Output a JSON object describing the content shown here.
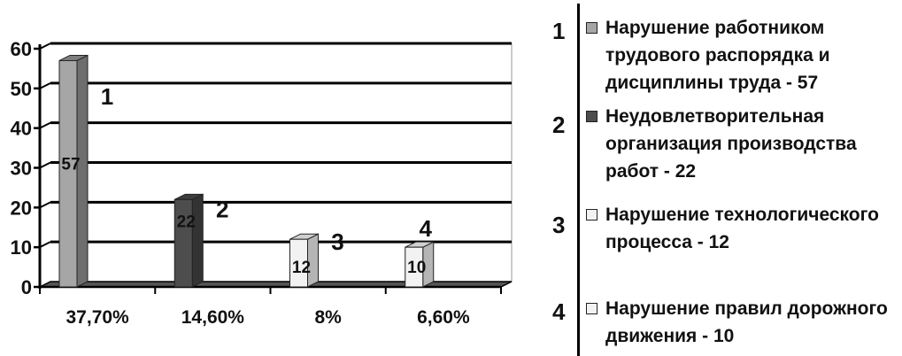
{
  "chart_data": {
    "type": "bar",
    "categories": [
      "37,70%",
      "14,60%",
      "8%",
      "6,60%"
    ],
    "values": [
      57,
      22,
      12,
      10
    ],
    "bar_numbers": [
      "1",
      "2",
      "3",
      "4"
    ],
    "bar_colors": [
      "#a6a6a6",
      "#4d4d4d",
      "#f2f2f2",
      "#f2f2f2"
    ],
    "ylim": [
      0,
      60
    ],
    "yticks": [
      0,
      10,
      20,
      30,
      40,
      50,
      60
    ],
    "grid": true,
    "legend_position": "right"
  },
  "legend": {
    "items": [
      {
        "number": "1",
        "color": "#a6a6a6",
        "text": "Нарушение работником трудового распорядка и дисциплины труда - 57"
      },
      {
        "number": "2",
        "color": "#4d4d4d",
        "text": "Неудовлетворительная организация производства работ - 22"
      },
      {
        "number": "3",
        "color": "#f2f2f2",
        "text": "Нарушение технологического процесса - 12"
      },
      {
        "number": "4",
        "color": "#f2f2f2",
        "text": "Нарушение правил дорожного движения - 10"
      }
    ]
  }
}
